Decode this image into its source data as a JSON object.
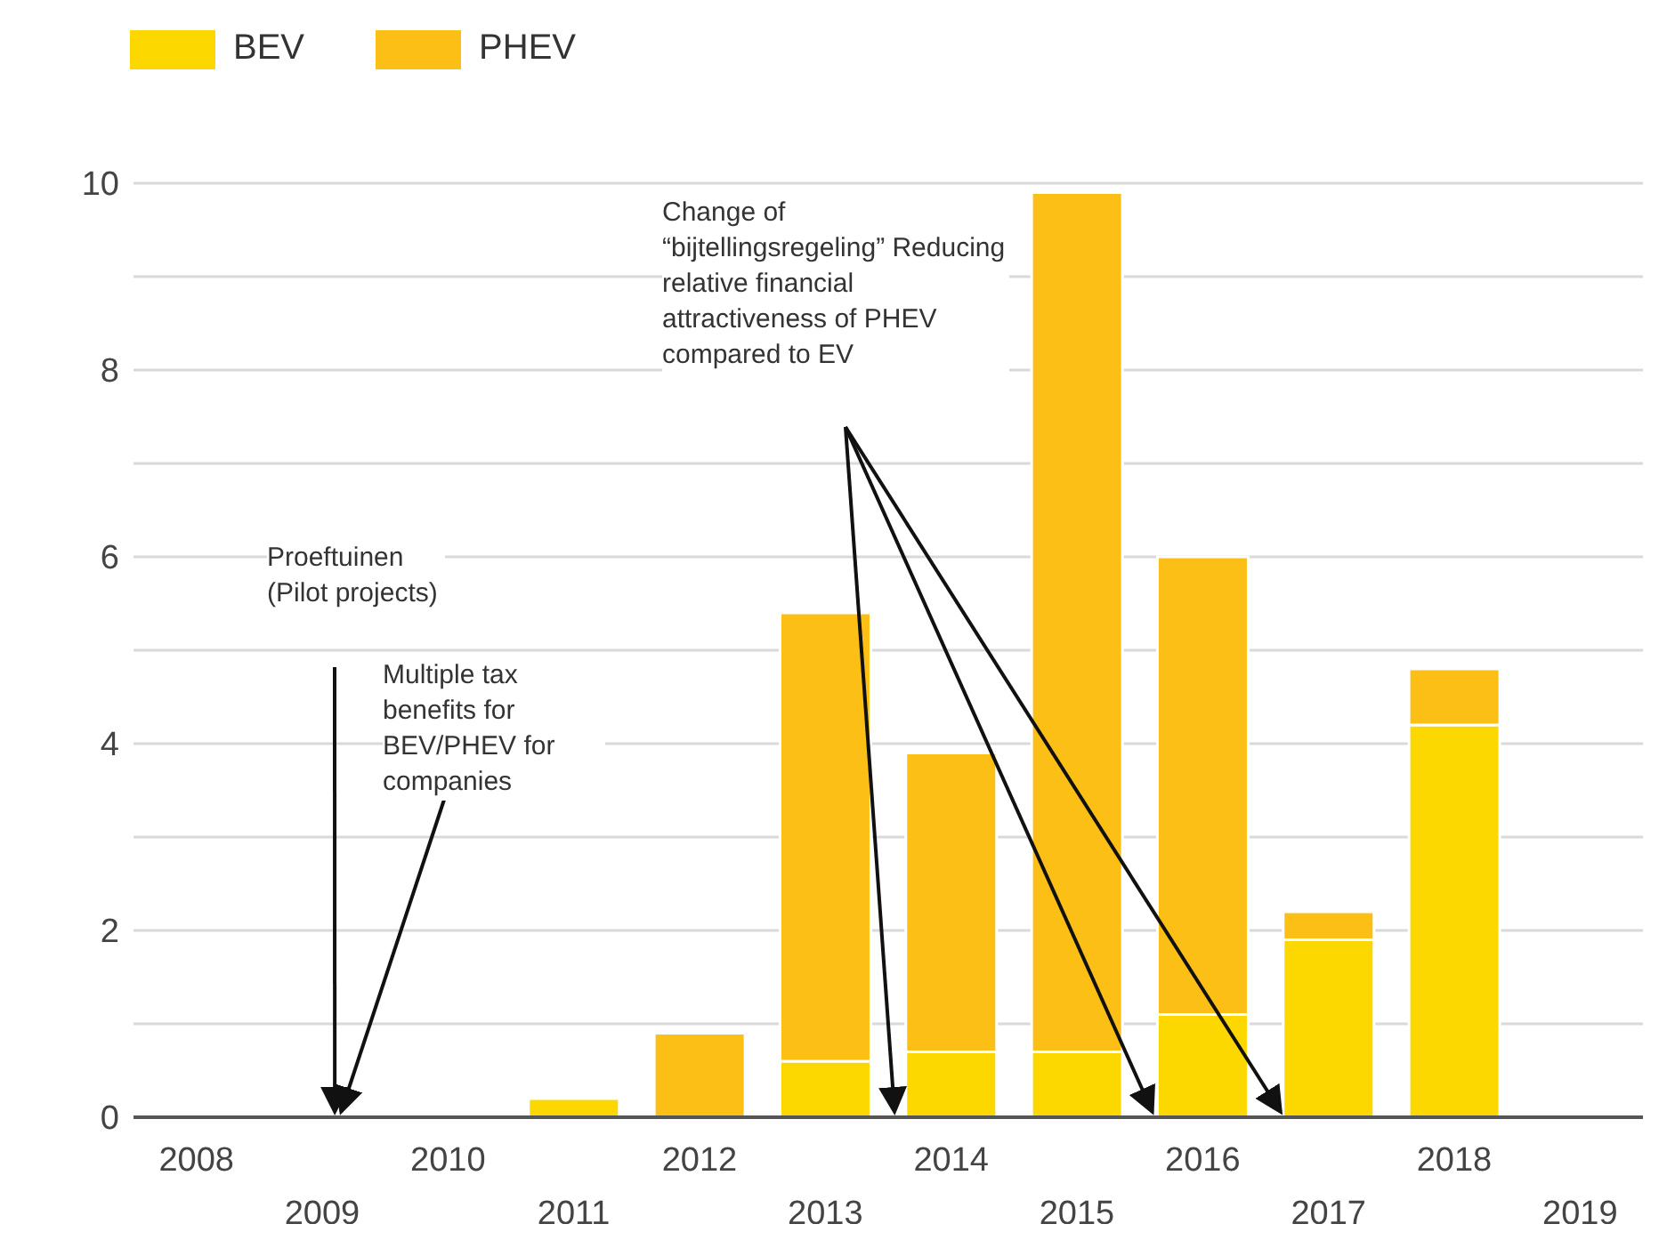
{
  "chart_data": {
    "type": "bar",
    "stacked": true,
    "categories": [
      "2008",
      "2009",
      "2010",
      "2011",
      "2012",
      "2013",
      "2014",
      "2015",
      "2016",
      "2017",
      "2018",
      "2019"
    ],
    "series": [
      {
        "name": "BEV",
        "color": "#fdd800",
        "values": [
          0,
          0,
          0,
          0.2,
          0,
          0.6,
          0.7,
          0.7,
          1.1,
          1.9,
          4.2,
          0
        ]
      },
      {
        "name": "PHEV",
        "color": "#fbbf16",
        "values": [
          0,
          0,
          0,
          0,
          0.9,
          4.8,
          3.2,
          9.2,
          4.9,
          0.3,
          0.6,
          0
        ]
      }
    ],
    "ylim": [
      0,
      10
    ],
    "yticks": [
      0,
      {
        "value": 1,
        "label": null
      },
      2,
      {
        "value": 3,
        "label": null
      },
      4,
      {
        "value": 5,
        "label": null
      },
      6,
      {
        "value": 7,
        "label": null
      },
      8,
      {
        "value": 9,
        "label": null
      },
      10
    ],
    "grid": "y",
    "legend": "top left",
    "annotations": [
      "Proeftuinen (Pilot projects)",
      "Multiple tax benefits for BEV/PHEV for companies",
      "Change of “bijtellingsregeling” Reducing relative financial attractiveness of PHEV compared to EV"
    ]
  }
}
